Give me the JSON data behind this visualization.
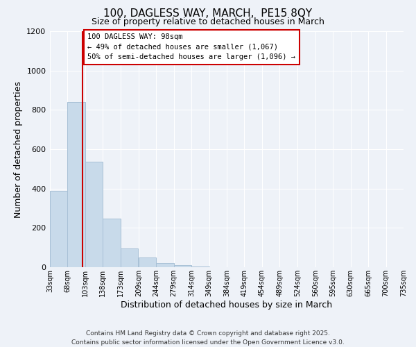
{
  "title": "100, DAGLESS WAY, MARCH,  PE15 8QY",
  "subtitle": "Size of property relative to detached houses in March",
  "xlabel": "Distribution of detached houses by size in March",
  "ylabel": "Number of detached properties",
  "bar_color": "#c8daea",
  "bar_edge_color": "#a8c0d6",
  "background_color": "#eef2f8",
  "grid_color": "#ffffff",
  "tick_labels": [
    "33sqm",
    "68sqm",
    "103sqm",
    "138sqm",
    "173sqm",
    "209sqm",
    "244sqm",
    "279sqm",
    "314sqm",
    "349sqm",
    "384sqm",
    "419sqm",
    "454sqm",
    "489sqm",
    "524sqm",
    "560sqm",
    "595sqm",
    "630sqm",
    "665sqm",
    "700sqm",
    "735sqm"
  ],
  "bin_edges": [
    33,
    68,
    103,
    138,
    173,
    209,
    244,
    279,
    314,
    349,
    384,
    419,
    454,
    489,
    524,
    560,
    595,
    630,
    665,
    700,
    735
  ],
  "bar_heights": [
    390,
    840,
    535,
    248,
    96,
    50,
    20,
    12,
    5,
    0,
    0,
    0,
    0,
    0,
    0,
    0,
    0,
    0,
    0,
    0
  ],
  "vline_x": 98,
  "vline_color": "#cc0000",
  "ylim": [
    0,
    1200
  ],
  "yticks": [
    0,
    200,
    400,
    600,
    800,
    1000,
    1200
  ],
  "annotation_title": "100 DAGLESS WAY: 98sqm",
  "annotation_line1": "← 49% of detached houses are smaller (1,067)",
  "annotation_line2": "50% of semi-detached houses are larger (1,096) →",
  "annotation_box_color": "#ffffff",
  "annotation_box_edge": "#cc0000",
  "footer_line1": "Contains HM Land Registry data © Crown copyright and database right 2025.",
  "footer_line2": "Contains public sector information licensed under the Open Government Licence v3.0."
}
